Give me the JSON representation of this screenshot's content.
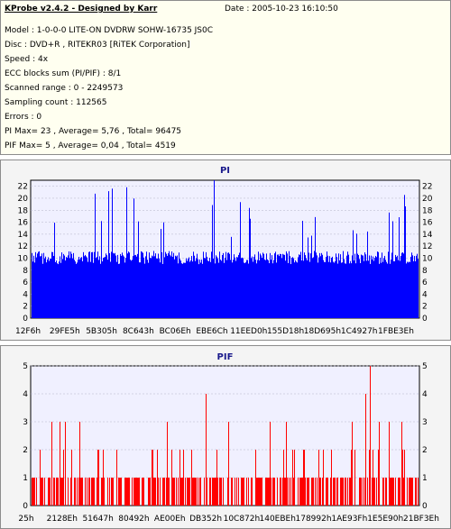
{
  "header": {
    "app_title": "KProbe v2.4.2 - Designed by Karr",
    "date": "Date : 2005-10-23 16:10:50"
  },
  "info": [
    "Model : 1-0-0-0 LITE-ON DVDRW SOHW-16735 JS0C",
    "Disc : DVD+R , RITEKR03 [RiTEK Corporation]",
    "Speed : 4x",
    "ECC blocks sum (PI/PIF) : 8/1",
    "Scanned range : 0 - 2249573",
    "Sampling count : 112565",
    "Errors : 0",
    "PI Max= 23 , Average= 5,76 , Total= 96475",
    "PIF Max= 5 , Average= 0,04 , Total= 4519"
  ],
  "chart_data": [
    {
      "type": "bar",
      "title": "PI",
      "color": "#0000ff",
      "ylim": [
        0,
        23
      ],
      "yticks": [
        0,
        2,
        4,
        6,
        8,
        10,
        12,
        14,
        16,
        18,
        20,
        22
      ],
      "xticks": [
        "12F6h",
        "29FE5h",
        "5B305h",
        "8C643h",
        "BC06Eh",
        "EBE6Ch",
        "11EED0h",
        "155D18h",
        "18D695h",
        "1C4927h",
        "1FBE3Eh"
      ],
      "max": 23,
      "average": 5.76,
      "baseline": 10,
      "background": "#f0f0ff",
      "grid": true
    },
    {
      "type": "bar",
      "title": "PIF",
      "color": "#ff0000",
      "ylim": [
        0,
        5
      ],
      "yticks": [
        0,
        1,
        2,
        3,
        4,
        5
      ],
      "xticks": [
        "25h",
        "2128Eh",
        "51647h",
        "80492h",
        "AE00Eh",
        "DB352h",
        "10C872h",
        "140EBEh",
        "178992h",
        "1AE93Fh",
        "1E5E90h",
        "21BF3Eh"
      ],
      "max": 5,
      "average": 0.04,
      "background": "#f0f0ff",
      "grid": true
    }
  ]
}
